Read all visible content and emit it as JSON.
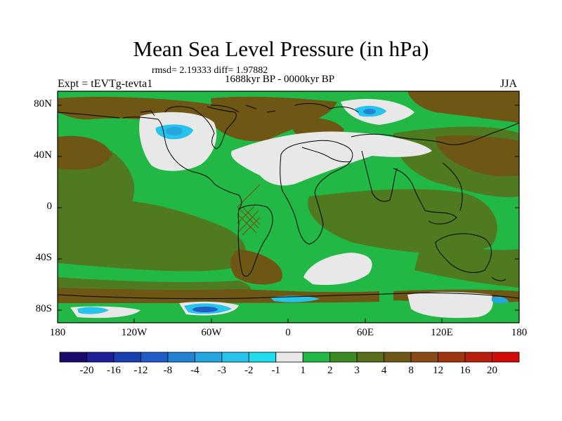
{
  "title": "Mean Sea Level Pressure (in hPa)",
  "stats": "rmsd= 2.19333  diff= 1.97882",
  "period": "1688kyr BP - 0000kyr BP",
  "experiment": "Expt = tEVTg-tevta1",
  "season": "JJA",
  "lat_labels": [
    "80N",
    "40N",
    "0",
    "40S",
    "80S"
  ],
  "lon_labels": [
    "180",
    "120W",
    "60W",
    "0",
    "60E",
    "120E",
    "180"
  ],
  "colorbar": {
    "labels": [
      "-20",
      "-16",
      "-12",
      "-8",
      "-4",
      "-3",
      "-2",
      "-1",
      "1",
      "2",
      "3",
      "4",
      "8",
      "12",
      "16",
      "20"
    ],
    "colors": [
      "#1a0a6b",
      "#1f1f9a",
      "#1a3fb0",
      "#1f5ec8",
      "#2283d6",
      "#25a6e0",
      "#26c4ea",
      "#20dcec",
      "#e8e8e8",
      "#22b845",
      "#3c8a22",
      "#5a6e18",
      "#6e5615",
      "#8a4a14",
      "#a0360f",
      "#b8200c",
      "#d40c08"
    ]
  },
  "map_colors": {
    "land_green": "#22b845",
    "olive": "#4f7a1f",
    "brown": "#6e5615",
    "white": "#e8e8e8",
    "light_blue": "#26c4ea",
    "blue": "#2283d6"
  }
}
